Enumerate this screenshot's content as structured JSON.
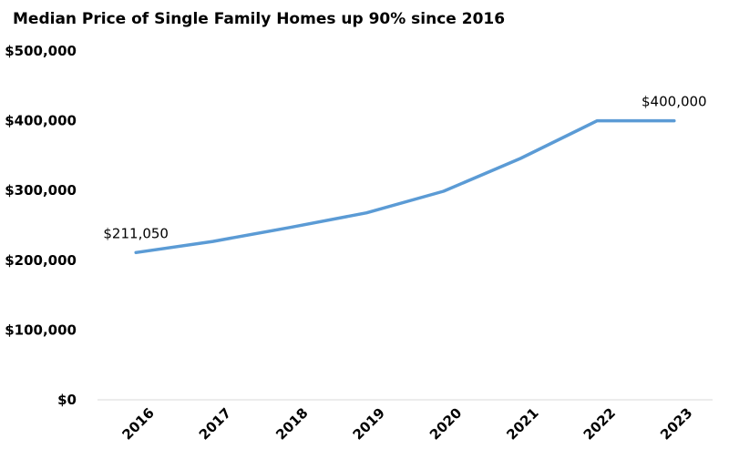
{
  "chart_data": {
    "type": "line",
    "title": "Median Price of Single Family Homes up 90% since 2016",
    "xlabel": "",
    "ylabel": "",
    "categories": [
      "2016",
      "2017",
      "2018",
      "2019",
      "2020",
      "2021",
      "2022",
      "2023"
    ],
    "series": [
      {
        "values": [
          211050,
          227000,
          247000,
          268000,
          299000,
          346000,
          400000,
          400000
        ],
        "color": "#5b9bd5"
      }
    ],
    "ylim": [
      0,
      500000
    ],
    "y_ticks": [
      0,
      100000,
      200000,
      300000,
      400000,
      500000
    ],
    "y_tick_labels": [
      "$0",
      "$100,000",
      "$200,000",
      "$300,000",
      "$400,000",
      "$500,000"
    ],
    "data_labels": [
      {
        "index": 0,
        "text": "$211,050"
      },
      {
        "index": 7,
        "text": "$400,000"
      }
    ],
    "grid": false,
    "legend": "none",
    "axis_line_color": "#d9d9d9"
  }
}
